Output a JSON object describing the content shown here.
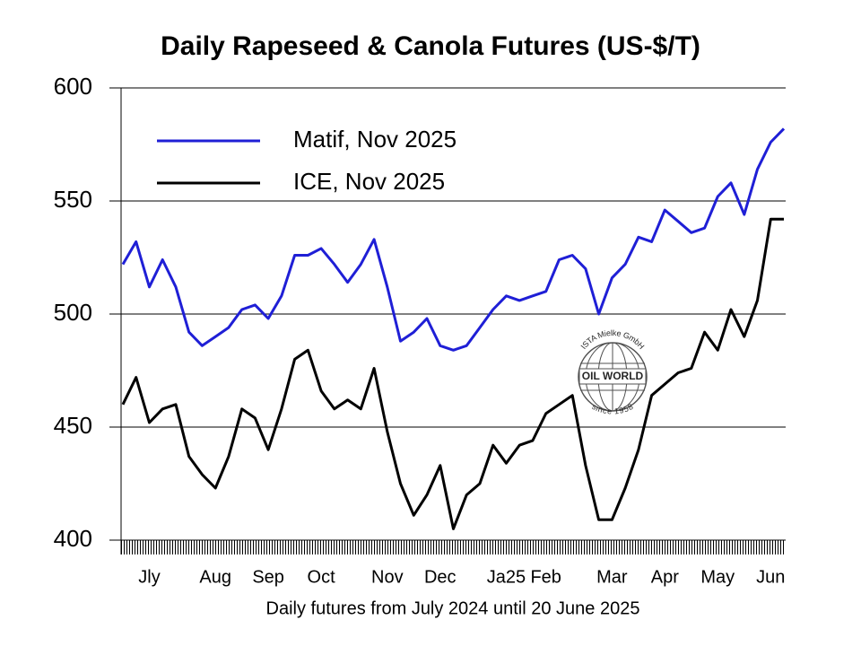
{
  "chart_data": {
    "type": "line",
    "title": "Daily Rapeseed & Canola Futures (US-$/T)",
    "x_label": "Daily futures from July 2024 until 20 June 2025",
    "categories": [
      null,
      null,
      "Jly",
      null,
      null,
      null,
      null,
      "Aug",
      null,
      null,
      null,
      "Sep",
      null,
      null,
      null,
      "Oct",
      null,
      null,
      null,
      null,
      "Nov",
      null,
      null,
      null,
      "Dec",
      null,
      null,
      null,
      null,
      "Ja25",
      null,
      null,
      "Feb",
      null,
      null,
      null,
      null,
      "Mar",
      null,
      null,
      null,
      "Apr",
      null,
      null,
      null,
      "May",
      null,
      null,
      null,
      "Jun",
      null
    ],
    "series": [
      {
        "name": "Matif, Nov 2025",
        "color": "#1f1fd6",
        "values": [
          522,
          532,
          512,
          524,
          512,
          492,
          486,
          490,
          494,
          502,
          504,
          498,
          508,
          526,
          526,
          529,
          522,
          514,
          522,
          533,
          512,
          488,
          492,
          498,
          486,
          484,
          486,
          494,
          502,
          508,
          506,
          508,
          510,
          524,
          526,
          520,
          500,
          516,
          522,
          534,
          532,
          546,
          541,
          536,
          538,
          552,
          558,
          544,
          564,
          576,
          582
        ]
      },
      {
        "name": "ICE, Nov 2025",
        "color": "#000000",
        "values": [
          460,
          472,
          452,
          458,
          460,
          437,
          429,
          423,
          437,
          458,
          454,
          440,
          458,
          480,
          484,
          466,
          458,
          462,
          458,
          476,
          448,
          425,
          411,
          420,
          433,
          405,
          420,
          425,
          442,
          434,
          442,
          444,
          456,
          460,
          464,
          433,
          409,
          409,
          423,
          440,
          464,
          469,
          474,
          476,
          492,
          484,
          502,
          490,
          506,
          542,
          542
        ]
      }
    ],
    "ylim": [
      400,
      600
    ],
    "yticks": [
      400,
      450,
      500,
      550,
      600
    ],
    "grid": true,
    "legend": "upper-left",
    "watermark": {
      "top": "ISTA Mielke GmbH",
      "middle": "OIL WORLD",
      "bottom": "since 1958"
    }
  }
}
